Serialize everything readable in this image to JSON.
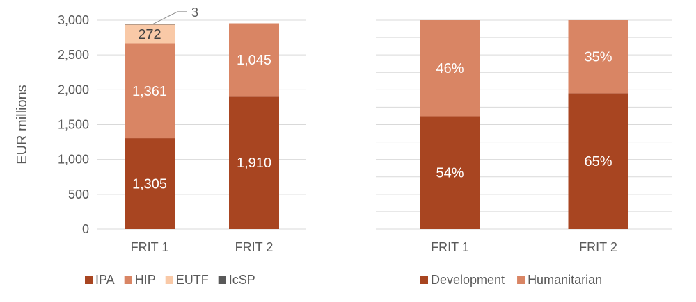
{
  "chart_data": [
    {
      "type": "bar",
      "stacked": true,
      "ylabel": "EUR millions",
      "ylim": [
        0,
        3000
      ],
      "yticks": [
        "0",
        "500",
        "1,000",
        "1,500",
        "2,000",
        "2,500",
        "3,000"
      ],
      "ytick_values": [
        0,
        500,
        1000,
        1500,
        2000,
        2500,
        3000
      ],
      "grid": true,
      "legend": "bottom",
      "categories": [
        "FRIT 1",
        "FRIT 2"
      ],
      "series": [
        {
          "name": "IPA",
          "values": [
            1305,
            1910
          ],
          "labels": [
            "1,305",
            "1,910"
          ],
          "color": "#a84521",
          "label_color": "#ffffff"
        },
        {
          "name": "HIP",
          "values": [
            1361,
            1045
          ],
          "labels": [
            "1,361",
            "1,045"
          ],
          "color": "#d98564",
          "label_color": "#ffffff"
        },
        {
          "name": "EUTF",
          "values": [
            272,
            0
          ],
          "labels": [
            "272",
            ""
          ],
          "color": "#f9c9a7",
          "label_color": "#404040"
        },
        {
          "name": "IcSP",
          "values": [
            3,
            0
          ],
          "labels": [
            "",
            ""
          ],
          "color": "#595959",
          "label_color": "#404040"
        }
      ],
      "callout": {
        "label": "3",
        "series": "IcSP",
        "category": "FRIT 1"
      }
    },
    {
      "type": "bar",
      "stacked": true,
      "percent": true,
      "ylim": [
        0,
        100
      ],
      "grid": true,
      "legend": "bottom",
      "categories": [
        "FRIT 1",
        "FRIT 2"
      ],
      "series": [
        {
          "name": "Development",
          "values": [
            54,
            65
          ],
          "labels": [
            "54%",
            "65%"
          ],
          "color": "#a84521",
          "label_color": "#ffffff"
        },
        {
          "name": "Humanitarian",
          "values": [
            46,
            35
          ],
          "labels": [
            "46%",
            "35%"
          ],
          "color": "#d98564",
          "label_color": "#ffffff"
        }
      ]
    }
  ]
}
